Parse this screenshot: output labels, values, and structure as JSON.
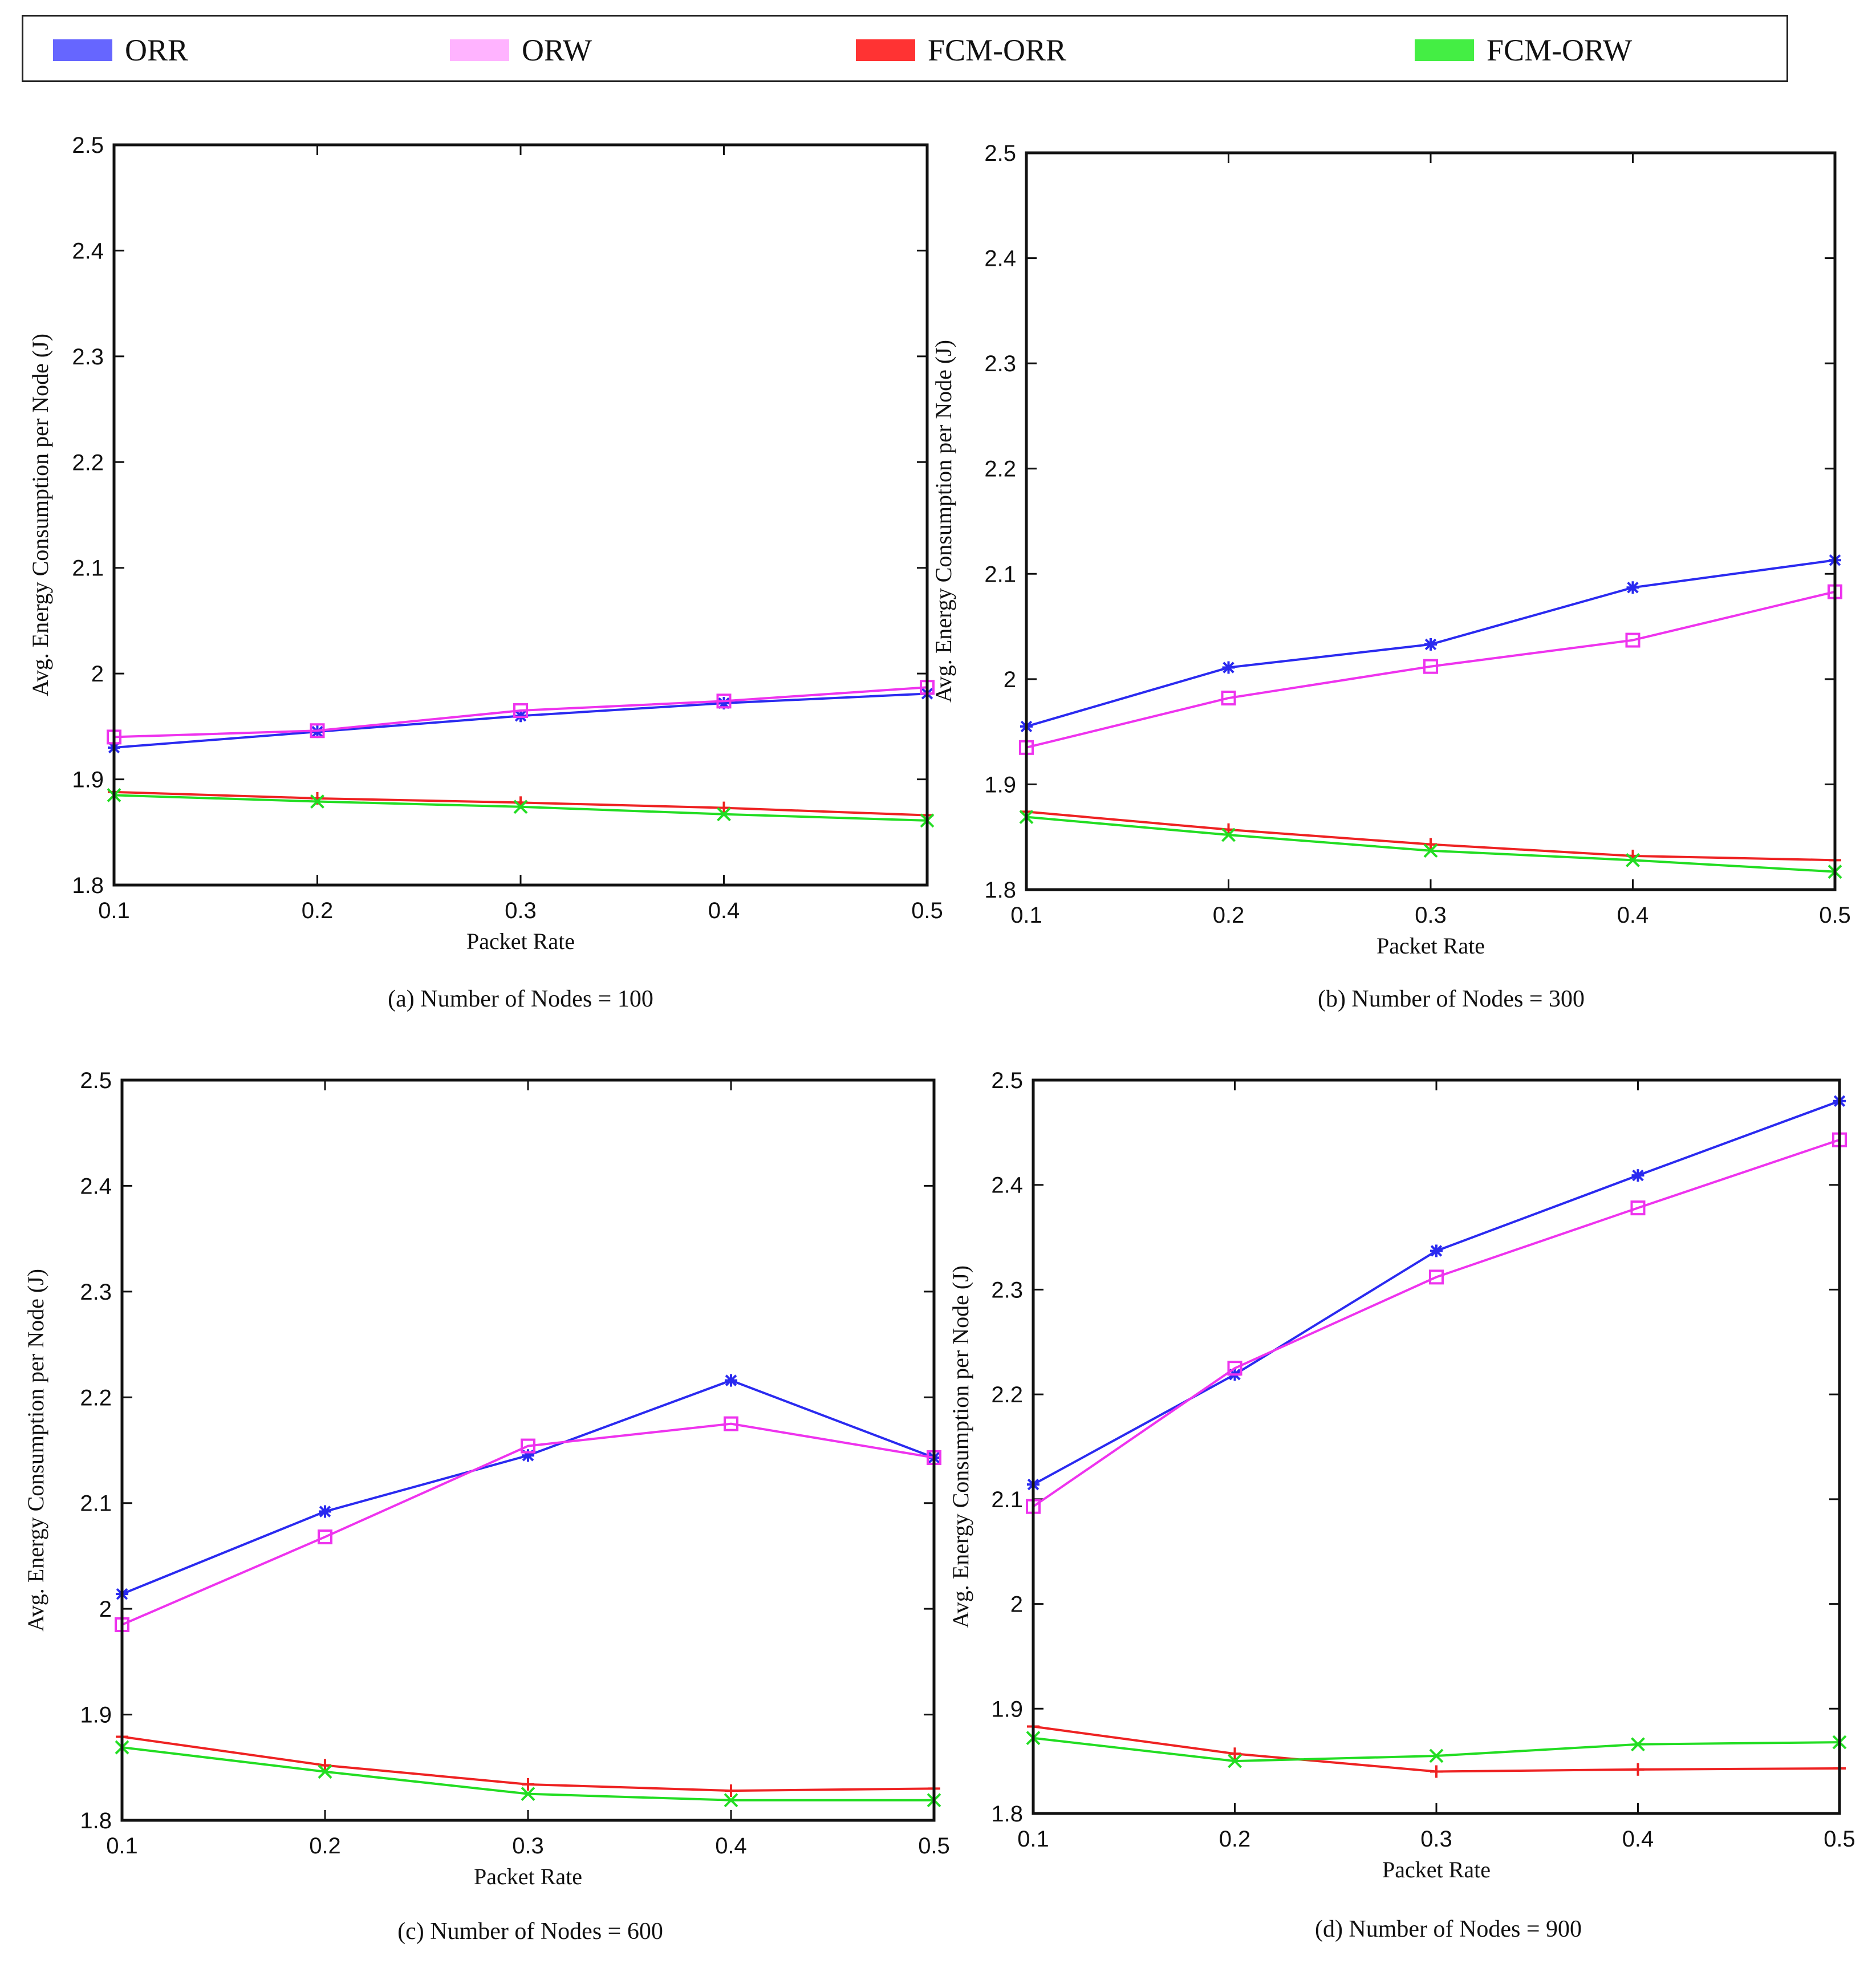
{
  "legend": {
    "items": [
      {
        "label": "ORR",
        "color": "#6666ff"
      },
      {
        "label": "ORW",
        "color": "#ffb3ff"
      },
      {
        "label": "FCM-ORR",
        "color": "#ff3333"
      },
      {
        "label": "FCM-ORW",
        "color": "#44ee44"
      }
    ]
  },
  "chart_data": [
    {
      "type": "line",
      "caption": "(a) Number of Nodes = 100",
      "xlabel": "Packet Rate",
      "ylabel": "Avg. Energy Consumption per Node (J)",
      "x": [
        0.1,
        0.2,
        0.3,
        0.4,
        0.5
      ],
      "x_ticks": [
        "0.1",
        "0.2",
        "0.3",
        "0.4",
        "0.5"
      ],
      "y_ticks": [
        "1.8",
        "1.9",
        "2",
        "2.1",
        "2.2",
        "2.3",
        "2.4",
        "2.5"
      ],
      "xlim": [
        0.1,
        0.5
      ],
      "ylim": [
        1.8,
        2.5
      ],
      "series": [
        {
          "name": "ORR",
          "color": "#2a2af0",
          "marker": "star",
          "values": [
            1.93,
            1.945,
            1.96,
            1.972,
            1.981
          ]
        },
        {
          "name": "ORW",
          "color": "#ee33ee",
          "marker": "square",
          "values": [
            1.94,
            1.946,
            1.965,
            1.974,
            1.987
          ]
        },
        {
          "name": "FCM-ORR",
          "color": "#ee2222",
          "marker": "plus",
          "values": [
            1.888,
            1.882,
            1.878,
            1.873,
            1.866
          ]
        },
        {
          "name": "FCM-ORW",
          "color": "#22dd22",
          "marker": "x",
          "values": [
            1.885,
            1.879,
            1.874,
            1.867,
            1.861
          ]
        }
      ]
    },
    {
      "type": "line",
      "caption": "(b) Number of Nodes = 300",
      "xlabel": "Packet Rate",
      "ylabel": "Avg. Energy Consumption per Node (J)",
      "x": [
        0.1,
        0.2,
        0.3,
        0.4,
        0.5
      ],
      "x_ticks": [
        "0.1",
        "0.2",
        "0.3",
        "0.4",
        "0.5"
      ],
      "y_ticks": [
        "1.8",
        "1.9",
        "2",
        "2.1",
        "2.2",
        "2.3",
        "2.4",
        "2.5"
      ],
      "xlim": [
        0.1,
        0.5
      ],
      "ylim": [
        1.8,
        2.5
      ],
      "series": [
        {
          "name": "ORR",
          "color": "#2a2af0",
          "marker": "star",
          "values": [
            1.955,
            2.011,
            2.033,
            2.087,
            2.113
          ]
        },
        {
          "name": "ORW",
          "color": "#ee33ee",
          "marker": "square",
          "values": [
            1.935,
            1.982,
            2.012,
            2.037,
            2.083
          ]
        },
        {
          "name": "FCM-ORR",
          "color": "#ee2222",
          "marker": "plus",
          "values": [
            1.874,
            1.857,
            1.843,
            1.832,
            1.828
          ]
        },
        {
          "name": "FCM-ORW",
          "color": "#22dd22",
          "marker": "x",
          "values": [
            1.869,
            1.852,
            1.837,
            1.828,
            1.817
          ]
        }
      ]
    },
    {
      "type": "line",
      "caption": "(c) Number of Nodes = 600",
      "xlabel": "Packet Rate",
      "ylabel": "Avg. Energy Consumption per Node (J)",
      "x": [
        0.1,
        0.2,
        0.3,
        0.4,
        0.5
      ],
      "x_ticks": [
        "0.1",
        "0.2",
        "0.3",
        "0.4",
        "0.5"
      ],
      "y_ticks": [
        "1.8",
        "1.9",
        "2",
        "2.1",
        "2.2",
        "2.3",
        "2.4",
        "2.5"
      ],
      "xlim": [
        0.1,
        0.5
      ],
      "ylim": [
        1.8,
        2.5
      ],
      "series": [
        {
          "name": "ORR",
          "color": "#2a2af0",
          "marker": "star",
          "values": [
            2.014,
            2.092,
            2.145,
            2.216,
            2.143
          ]
        },
        {
          "name": "ORW",
          "color": "#ee33ee",
          "marker": "square",
          "values": [
            1.985,
            2.068,
            2.154,
            2.175,
            2.143
          ]
        },
        {
          "name": "FCM-ORR",
          "color": "#ee2222",
          "marker": "plus",
          "values": [
            1.879,
            1.852,
            1.834,
            1.828,
            1.83
          ]
        },
        {
          "name": "FCM-ORW",
          "color": "#22dd22",
          "marker": "x",
          "values": [
            1.869,
            1.846,
            1.825,
            1.819,
            1.819
          ]
        }
      ]
    },
    {
      "type": "line",
      "caption": "(d) Number of Nodes = 900",
      "xlabel": "Packet Rate",
      "ylabel": "Avg. Energy Consumption per Node (J)",
      "x": [
        0.1,
        0.2,
        0.3,
        0.4,
        0.5
      ],
      "x_ticks": [
        "0.1",
        "0.2",
        "0.3",
        "0.4",
        "0.5"
      ],
      "y_ticks": [
        "1.8",
        "1.9",
        "2",
        "2.1",
        "2.2",
        "2.3",
        "2.4",
        "2.5"
      ],
      "xlim": [
        0.1,
        0.5
      ],
      "ylim": [
        1.8,
        2.5
      ],
      "series": [
        {
          "name": "ORR",
          "color": "#2a2af0",
          "marker": "star",
          "values": [
            2.114,
            2.219,
            2.337,
            2.409,
            2.48
          ]
        },
        {
          "name": "ORW",
          "color": "#ee33ee",
          "marker": "square",
          "values": [
            2.093,
            2.225,
            2.312,
            2.378,
            2.443
          ]
        },
        {
          "name": "FCM-ORR",
          "color": "#ee2222",
          "marker": "plus",
          "values": [
            1.883,
            1.857,
            1.84,
            1.842,
            1.843
          ]
        },
        {
          "name": "FCM-ORW",
          "color": "#22dd22",
          "marker": "x",
          "values": [
            1.872,
            1.85,
            1.855,
            1.866,
            1.868
          ]
        }
      ]
    }
  ]
}
